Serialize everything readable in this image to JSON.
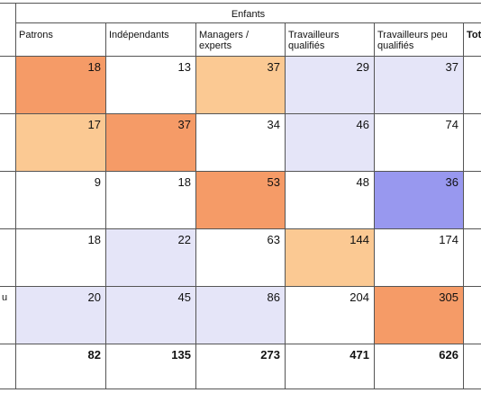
{
  "table": {
    "group_title": "Enfants",
    "columns": [
      "Patrons",
      "Indépendants",
      "Managers / experts",
      "Travailleurs qualifiés",
      "Travailleurs peu qualifiés",
      "Tot"
    ],
    "row_stubs": [
      "",
      "",
      "",
      "",
      "u",
      ""
    ],
    "rows": [
      [
        "18",
        "13",
        "37",
        "29",
        "37"
      ],
      [
        "17",
        "37",
        "34",
        "46",
        "74"
      ],
      [
        "9",
        "18",
        "53",
        "48",
        "36"
      ],
      [
        "18",
        "22",
        "63",
        "144",
        "174"
      ],
      [
        "20",
        "45",
        "86",
        "204",
        "305"
      ],
      [
        "82",
        "135",
        "273",
        "471",
        "626"
      ]
    ],
    "fills": [
      [
        "#f59b67",
        "#ffffff",
        "#fbc993",
        "#e5e5f8",
        "#e5e5f8"
      ],
      [
        "#fbc993",
        "#f59b67",
        "#ffffff",
        "#e5e5f8",
        "#ffffff"
      ],
      [
        "#ffffff",
        "#ffffff",
        "#f59b67",
        "#ffffff",
        "#9898ef"
      ],
      [
        "#ffffff",
        "#e5e5f8",
        "#ffffff",
        "#fbc993",
        "#ffffff"
      ],
      [
        "#e5e5f8",
        "#e5e5f8",
        "#e5e5f8",
        "#ffffff",
        "#f59b67"
      ],
      [
        "#ffffff",
        "#ffffff",
        "#ffffff",
        "#ffffff",
        "#ffffff"
      ]
    ],
    "bold_rows": [
      false,
      false,
      false,
      false,
      false,
      true
    ]
  }
}
